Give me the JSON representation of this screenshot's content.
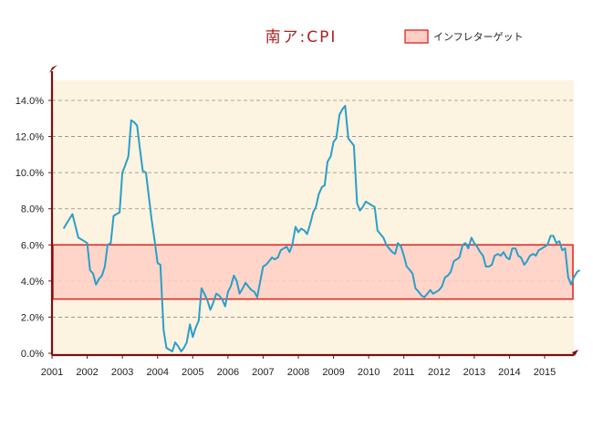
{
  "chart_data": {
    "type": "line",
    "title": "南ア:CPI",
    "legend": {
      "label": "インフレターゲット",
      "placement": "top-right"
    },
    "y_ticks": [
      "0.0%",
      "2.0%",
      "4.0%",
      "6.0%",
      "8.0%",
      "10.0%",
      "12.0%",
      "14.0%"
    ],
    "x_ticks": [
      "2001",
      "2002",
      "2003",
      "2004",
      "2005",
      "2006",
      "2007",
      "2008",
      "2009",
      "2010",
      "2011",
      "2012",
      "2013",
      "2014",
      "2015"
    ],
    "ylim": [
      0,
      14.0
    ],
    "xlim": [
      2001.0,
      2015.83
    ],
    "grid": {
      "horizontal": true,
      "style": "dashed"
    },
    "target_band": {
      "low": 3.0,
      "high": 6.0
    },
    "colors": {
      "line": "#2a9fc8",
      "band_fill": "#ffcfc6",
      "band_border": "#e02020",
      "plot_bg": "#fdf3e1",
      "axis": "#7a1010",
      "title": "#b02020"
    },
    "series": [
      {
        "points": [
          [
            2001.33,
            6.9
          ],
          [
            2001.42,
            7.2
          ],
          [
            2001.58,
            7.7
          ],
          [
            2001.75,
            6.4
          ],
          [
            2001.92,
            6.2
          ],
          [
            2002.0,
            6.1
          ],
          [
            2002.08,
            4.6
          ],
          [
            2002.17,
            4.4
          ],
          [
            2002.25,
            3.8
          ],
          [
            2002.33,
            4.1
          ],
          [
            2002.42,
            4.3
          ],
          [
            2002.5,
            4.8
          ],
          [
            2002.58,
            6.0
          ],
          [
            2002.67,
            6.1
          ],
          [
            2002.75,
            7.6
          ],
          [
            2002.83,
            7.7
          ],
          [
            2002.92,
            7.8
          ],
          [
            2003.0,
            10.0
          ],
          [
            2003.08,
            10.4
          ],
          [
            2003.17,
            10.9
          ],
          [
            2003.25,
            12.9
          ],
          [
            2003.33,
            12.8
          ],
          [
            2003.42,
            12.6
          ],
          [
            2003.5,
            11.3
          ],
          [
            2003.58,
            10.1
          ],
          [
            2003.67,
            10.0
          ],
          [
            2003.75,
            8.7
          ],
          [
            2003.83,
            7.4
          ],
          [
            2003.92,
            6.2
          ],
          [
            2004.0,
            5.0
          ],
          [
            2004.08,
            4.9
          ],
          [
            2004.17,
            1.3
          ],
          [
            2004.25,
            0.3
          ],
          [
            2004.33,
            0.2
          ],
          [
            2004.42,
            0.1
          ],
          [
            2004.5,
            0.6
          ],
          [
            2004.58,
            0.4
          ],
          [
            2004.67,
            0.1
          ],
          [
            2004.75,
            0.3
          ],
          [
            2004.83,
            0.6
          ],
          [
            2004.92,
            1.6
          ],
          [
            2005.0,
            0.9
          ],
          [
            2005.08,
            1.4
          ],
          [
            2005.17,
            1.8
          ],
          [
            2005.25,
            3.6
          ],
          [
            2005.33,
            3.3
          ],
          [
            2005.42,
            2.9
          ],
          [
            2005.5,
            2.4
          ],
          [
            2005.58,
            2.8
          ],
          [
            2005.67,
            3.3
          ],
          [
            2005.75,
            3.2
          ],
          [
            2005.83,
            3.0
          ],
          [
            2005.92,
            2.6
          ],
          [
            2006.0,
            3.4
          ],
          [
            2006.08,
            3.7
          ],
          [
            2006.17,
            4.3
          ],
          [
            2006.25,
            4.0
          ],
          [
            2006.33,
            3.3
          ],
          [
            2006.42,
            3.6
          ],
          [
            2006.5,
            3.9
          ],
          [
            2006.58,
            3.7
          ],
          [
            2006.67,
            3.5
          ],
          [
            2006.75,
            3.4
          ],
          [
            2006.83,
            3.1
          ],
          [
            2006.92,
            4.0
          ],
          [
            2007.0,
            4.8
          ],
          [
            2007.08,
            4.9
          ],
          [
            2007.17,
            5.1
          ],
          [
            2007.25,
            5.3
          ],
          [
            2007.33,
            5.2
          ],
          [
            2007.42,
            5.3
          ],
          [
            2007.5,
            5.7
          ],
          [
            2007.58,
            5.8
          ],
          [
            2007.67,
            5.9
          ],
          [
            2007.75,
            5.6
          ],
          [
            2007.83,
            6.0
          ],
          [
            2007.92,
            7.0
          ],
          [
            2008.0,
            6.7
          ],
          [
            2008.08,
            6.9
          ],
          [
            2008.17,
            6.8
          ],
          [
            2008.25,
            6.6
          ],
          [
            2008.33,
            7.1
          ],
          [
            2008.42,
            7.8
          ],
          [
            2008.5,
            8.1
          ],
          [
            2008.58,
            8.8
          ],
          [
            2008.67,
            9.2
          ],
          [
            2008.75,
            9.3
          ],
          [
            2008.83,
            10.6
          ],
          [
            2008.92,
            10.9
          ],
          [
            2009.0,
            11.7
          ],
          [
            2009.08,
            11.9
          ],
          [
            2009.17,
            13.2
          ],
          [
            2009.25,
            13.5
          ],
          [
            2009.33,
            13.7
          ],
          [
            2009.42,
            11.9
          ],
          [
            2009.5,
            11.7
          ],
          [
            2009.58,
            11.5
          ],
          [
            2009.67,
            8.3
          ],
          [
            2009.75,
            7.9
          ],
          [
            2009.83,
            8.1
          ],
          [
            2009.92,
            8.4
          ],
          [
            2010.0,
            8.3
          ],
          [
            2010.08,
            8.2
          ],
          [
            2010.17,
            8.1
          ],
          [
            2010.25,
            6.8
          ],
          [
            2010.33,
            6.6
          ],
          [
            2010.42,
            6.4
          ],
          [
            2010.5,
            6.0
          ],
          [
            2010.58,
            5.8
          ],
          [
            2010.67,
            5.6
          ],
          [
            2010.75,
            5.5
          ],
          [
            2010.83,
            6.1
          ],
          [
            2010.92,
            5.9
          ],
          [
            2011.0,
            5.4
          ],
          [
            2011.08,
            4.8
          ],
          [
            2011.17,
            4.6
          ],
          [
            2011.25,
            4.4
          ],
          [
            2011.33,
            3.6
          ],
          [
            2011.42,
            3.4
          ],
          [
            2011.5,
            3.2
          ],
          [
            2011.58,
            3.1
          ],
          [
            2011.67,
            3.3
          ],
          [
            2011.75,
            3.5
          ],
          [
            2011.83,
            3.3
          ],
          [
            2011.92,
            3.4
          ],
          [
            2012.0,
            3.5
          ],
          [
            2012.08,
            3.7
          ],
          [
            2012.17,
            4.2
          ],
          [
            2012.25,
            4.3
          ],
          [
            2012.33,
            4.5
          ],
          [
            2012.42,
            5.1
          ],
          [
            2012.5,
            5.2
          ],
          [
            2012.58,
            5.3
          ],
          [
            2012.67,
            6.0
          ],
          [
            2012.75,
            6.1
          ],
          [
            2012.83,
            5.8
          ],
          [
            2012.92,
            6.4
          ],
          [
            2013.0,
            6.1
          ],
          [
            2013.08,
            5.9
          ],
          [
            2013.17,
            5.6
          ],
          [
            2013.25,
            5.4
          ],
          [
            2013.33,
            4.8
          ],
          [
            2013.42,
            4.8
          ],
          [
            2013.5,
            4.9
          ],
          [
            2013.58,
            5.4
          ],
          [
            2013.67,
            5.5
          ],
          [
            2013.75,
            5.4
          ],
          [
            2013.83,
            5.6
          ],
          [
            2013.92,
            5.3
          ],
          [
            2014.0,
            5.2
          ],
          [
            2014.08,
            5.8
          ],
          [
            2014.17,
            5.8
          ],
          [
            2014.25,
            5.4
          ],
          [
            2014.33,
            5.3
          ],
          [
            2014.42,
            4.9
          ],
          [
            2014.5,
            5.1
          ],
          [
            2014.58,
            5.4
          ],
          [
            2014.67,
            5.5
          ],
          [
            2014.75,
            5.4
          ],
          [
            2014.83,
            5.7
          ],
          [
            2014.92,
            5.8
          ],
          [
            2015.0,
            5.9
          ],
          [
            2015.08,
            6.0
          ],
          [
            2015.17,
            6.5
          ],
          [
            2015.25,
            6.5
          ],
          [
            2015.33,
            6.1
          ],
          [
            2015.42,
            6.2
          ],
          [
            2015.5,
            5.7
          ],
          [
            2015.58,
            5.8
          ],
          [
            2015.67,
            4.2
          ],
          [
            2015.75,
            3.8
          ],
          [
            2015.83,
            4.2
          ],
          [
            2015.92,
            4.5
          ],
          [
            2016.0,
            4.6
          ]
        ]
      }
    ]
  }
}
